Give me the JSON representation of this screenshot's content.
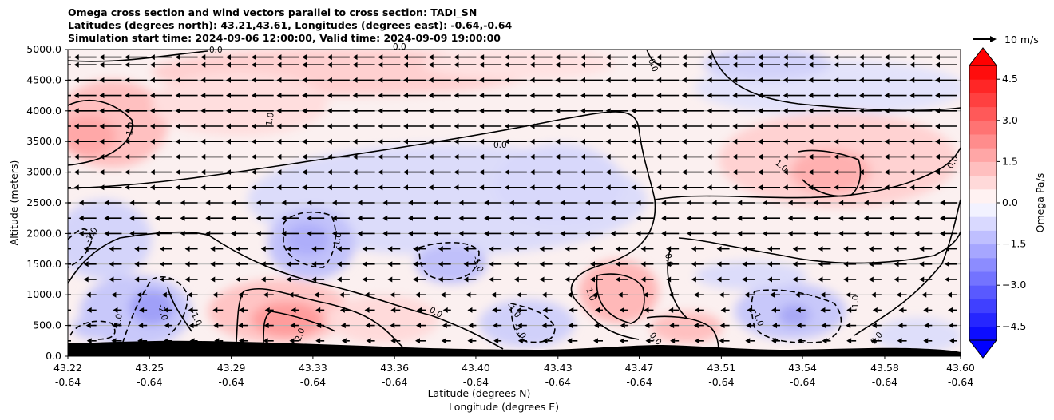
{
  "chart_data": {
    "type": "heatmap",
    "title": [
      "Omega cross section and wind vectors parallel to cross section: TADI_SN",
      "Latitudes (degrees north): 43.21,43.61, Longitudes (degrees east): -0.64,-0.64",
      "Simulation start time: 2024-09-06 12:00:00, Valid time: 2024-09-09 19:00:00"
    ],
    "xlabel": "Latitude (degrees N)",
    "xlabel2": "Longitude (degrees E)",
    "ylabel": "Altitude (meters)",
    "x_ticks": [
      {
        "lat": "43.22",
        "lon": "-0.64"
      },
      {
        "lat": "43.25",
        "lon": "-0.64"
      },
      {
        "lat": "43.29",
        "lon": "-0.64"
      },
      {
        "lat": "43.33",
        "lon": "-0.64"
      },
      {
        "lat": "43.36",
        "lon": "-0.64"
      },
      {
        "lat": "43.40",
        "lon": "-0.64"
      },
      {
        "lat": "43.43",
        "lon": "-0.64"
      },
      {
        "lat": "43.47",
        "lon": "-0.64"
      },
      {
        "lat": "43.51",
        "lon": "-0.64"
      },
      {
        "lat": "43.54",
        "lon": "-0.64"
      },
      {
        "lat": "43.58",
        "lon": "-0.64"
      },
      {
        "lat": "43.60",
        "lon": "-0.64"
      }
    ],
    "x_tick_positions": [
      0,
      0.0915,
      0.183,
      0.2745,
      0.366,
      0.457,
      0.549,
      0.64,
      0.732,
      0.823,
      0.915,
      1.0
    ],
    "y_ticks": [
      "0.0",
      "500.0",
      "1000.0",
      "1500.0",
      "2000.0",
      "2500.0",
      "3000.0",
      "3500.0",
      "4000.0",
      "4500.0",
      "5000.0"
    ],
    "ylim": [
      0,
      5000
    ],
    "colorbar": {
      "label": "Omega Pa/s",
      "ticks": [
        "4.5",
        "3.0",
        "1.5",
        "0.0",
        "−1.5",
        "−3.0",
        "−4.5"
      ],
      "tick_values": [
        4.5,
        3.0,
        1.5,
        0.0,
        -1.5,
        -3.0,
        -4.5
      ],
      "range": [
        -5.0,
        5.0
      ],
      "extend": "both",
      "colormap": "bwr"
    },
    "vector_key": {
      "label": "10 m/s"
    },
    "contour_labels": [
      "0.0",
      "1.0",
      "1.0",
      "0.0",
      "0.0",
      "1.0",
      "-1.0",
      "-1.0",
      "-1.0",
      "-2.0",
      "-1.0",
      "2.0",
      "0.0",
      "-1.0",
      "-1.0",
      "1.0",
      "0.0",
      "0.0",
      "-1.0",
      "-1.0",
      "0.0",
      "0.0",
      "1.0",
      "0.0"
    ],
    "grid": true,
    "terrain_color": "#000000"
  }
}
